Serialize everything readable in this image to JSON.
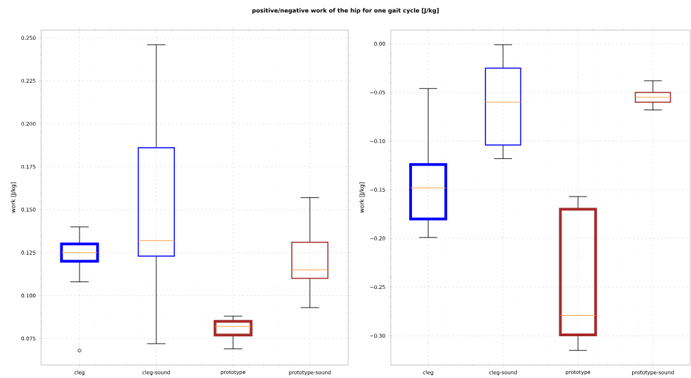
{
  "chart_data": [
    {
      "type": "box",
      "title": "positive/negative work of the hip for one gait cycle [J/kg]",
      "ylabel": "work [J/kg]",
      "categories": [
        "cleg",
        "cleg-sound",
        "prototype",
        "prototype-sound"
      ],
      "colors": [
        "#0000ff",
        "#0000ff",
        "#a52a2a",
        "#a52a2a"
      ],
      "grid": true,
      "ylim": [
        0.0596,
        0.2545
      ],
      "yticks": [
        {
          "value": 0.075,
          "label": "0.075"
        },
        {
          "value": 0.1,
          "label": "0.100"
        },
        {
          "value": 0.125,
          "label": "0.125"
        },
        {
          "value": 0.15,
          "label": "0.150"
        },
        {
          "value": 0.175,
          "label": "0.175"
        },
        {
          "value": 0.2,
          "label": "0.200"
        },
        {
          "value": 0.225,
          "label": "0.225"
        },
        {
          "value": 0.25,
          "label": "0.250"
        }
      ],
      "boxes": [
        {
          "low": 0.108,
          "q1": 0.12,
          "median": 0.125,
          "q3": 0.13,
          "high": 0.14,
          "outliers": [
            0.068
          ]
        },
        {
          "low": 0.072,
          "q1": 0.123,
          "median": 0.132,
          "q3": 0.186,
          "high": 0.246
        },
        {
          "low": 0.069,
          "q1": 0.077,
          "median": 0.082,
          "q3": 0.085,
          "high": 0.088
        },
        {
          "low": 0.093,
          "q1": 0.11,
          "median": 0.115,
          "q3": 0.131,
          "high": 0.157
        }
      ]
    },
    {
      "type": "box",
      "ylabel": "work [J/kg]",
      "categories": [
        "cleg",
        "cleg-sound",
        "prototype",
        "prototype-sound"
      ],
      "colors": [
        "#0000ff",
        "#0000ff",
        "#a52a2a",
        "#a52a2a"
      ],
      "grid": true,
      "ylim": [
        -0.33,
        0.014
      ],
      "yticks": [
        {
          "value": -0.3,
          "label": "−0.30"
        },
        {
          "value": -0.25,
          "label": "−0.25"
        },
        {
          "value": -0.2,
          "label": "−0.20"
        },
        {
          "value": -0.15,
          "label": "−0.15"
        },
        {
          "value": -0.1,
          "label": "−0.10"
        },
        {
          "value": -0.05,
          "label": "−0.05"
        },
        {
          "value": 0,
          "label": "0.00"
        }
      ],
      "boxes": [
        {
          "low": -0.199,
          "q1": -0.18,
          "median": -0.148,
          "q3": -0.124,
          "high": -0.046
        },
        {
          "low": -0.118,
          "q1": -0.104,
          "median": -0.06,
          "q3": -0.025,
          "high": -0.001
        },
        {
          "low": -0.315,
          "q1": -0.299,
          "median": -0.279,
          "q3": -0.17,
          "high": -0.157
        },
        {
          "low": -0.068,
          "q1": -0.06,
          "median": -0.055,
          "q3": -0.05,
          "high": -0.038
        }
      ]
    }
  ]
}
